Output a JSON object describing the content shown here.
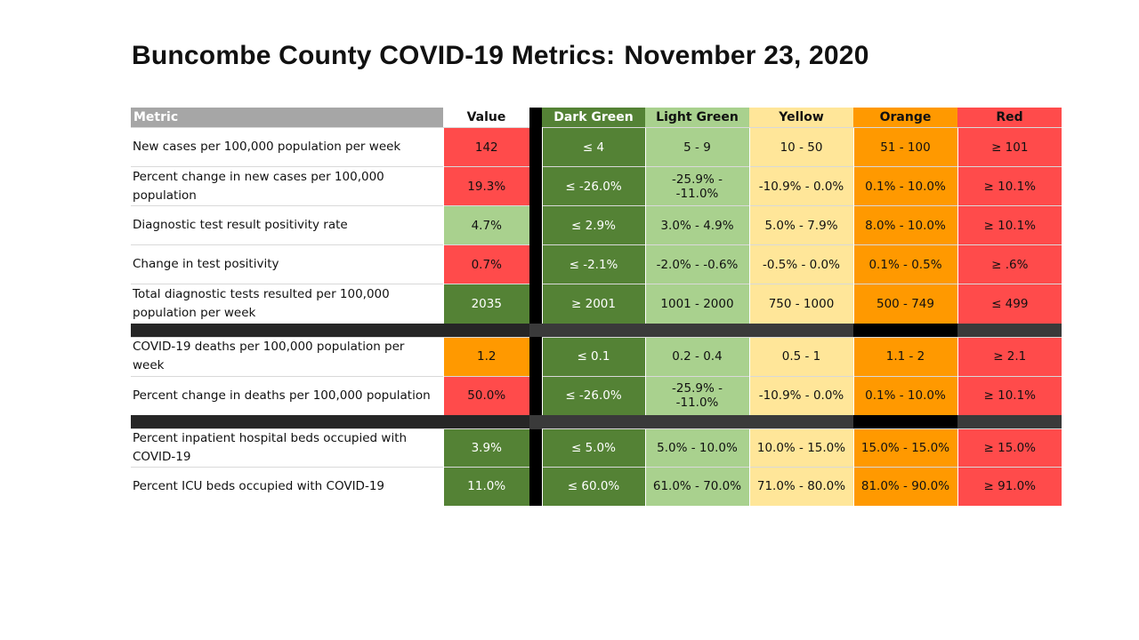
{
  "title_part1": "Buncombe County COVID-19 Metrics:",
  "title_part2": "November 23, 2020",
  "colors": {
    "dark_green": "#548235",
    "light_green": "#a9d18e",
    "yellow": "#ffe699",
    "orange": "#ff9900",
    "red": "#ff4b4b",
    "header_gray": "#a6a6a6"
  },
  "chart_data": {
    "type": "table",
    "columns": [
      "Metric",
      "Value",
      "Dark Green",
      "Light Green",
      "Yellow",
      "Orange",
      "Red"
    ],
    "groups": [
      {
        "rows": [
          {
            "metric": "New cases  per 100,000 population per week",
            "value": "142",
            "status": "red",
            "bands": [
              "≤ 4",
              "5 - 9",
              "10 - 50",
              "51 - 100",
              "≥ 101"
            ],
            "height": 44
          },
          {
            "metric": "Percent change in new cases per 100,000 population",
            "value": "19.3%",
            "status": "red",
            "bands": [
              "≤ -26.0%",
              "-25.9% - -11.0%",
              "-10.9% - 0.0%",
              "0.1% - 10.0%",
              "≥ 10.1%"
            ],
            "height": 44
          },
          {
            "metric": "Diagnostic test result positivity rate",
            "value": "4.7%",
            "status": "light_green",
            "bands": [
              "≤ 2.9%",
              "3.0% - 4.9%",
              "5.0% - 7.9%",
              "8.0% - 10.0%",
              "≥ 10.1%"
            ],
            "height": 44
          },
          {
            "metric": "Change in test positivity",
            "value": "0.7%",
            "status": "red",
            "bands": [
              "≤ -2.1%",
              "-2.0% - -0.6%",
              "-0.5% - 0.0%",
              "0.1% - 0.5%",
              "≥ .6%"
            ],
            "height": 44
          },
          {
            "metric": "Total diagnostic tests resulted per 100,000 population per week",
            "value": "2035",
            "status": "dark_green",
            "bands": [
              "≥ 2001",
              "1001 - 2000",
              "750 - 1000",
              "500 - 749",
              "≤ 499"
            ],
            "height": 44
          }
        ]
      },
      {
        "rows": [
          {
            "metric": "COVID-19 deaths per 100,000 population per week",
            "value": "1.2",
            "status": "orange",
            "bands": [
              "≤ 0.1",
              "0.2 - 0.4",
              "0.5 - 1",
              "1.1 - 2",
              "≥ 2.1"
            ],
            "height": 44
          },
          {
            "metric": "Percent change in deaths per 100,000 population",
            "value": "50.0%",
            "status": "red",
            "bands": [
              "≤ -26.0%",
              "-25.9% - -11.0%",
              "-10.9% - 0.0%",
              "0.1% - 10.0%",
              "≥ 10.1%"
            ],
            "height": 44
          }
        ]
      },
      {
        "rows": [
          {
            "metric": "Percent inpatient hospital beds occupied with COVID-19",
            "value": "3.9%",
            "status": "dark_green",
            "bands": [
              "≤ 5.0%",
              "5.0% - 10.0%",
              "10.0% - 15.0%",
              "15.0% - 15.0%",
              "≥ 15.0%"
            ],
            "height": 42
          },
          {
            "metric": "Percent ICU beds occupied with COVID-19",
            "value": "11.0%",
            "status": "dark_green",
            "bands": [
              "≤ 60.0%",
              "61.0% - 70.0%",
              "71.0% - 80.0%",
              "81.0% - 90.0%",
              "≥ 91.0%"
            ],
            "height": 43
          }
        ]
      }
    ]
  }
}
